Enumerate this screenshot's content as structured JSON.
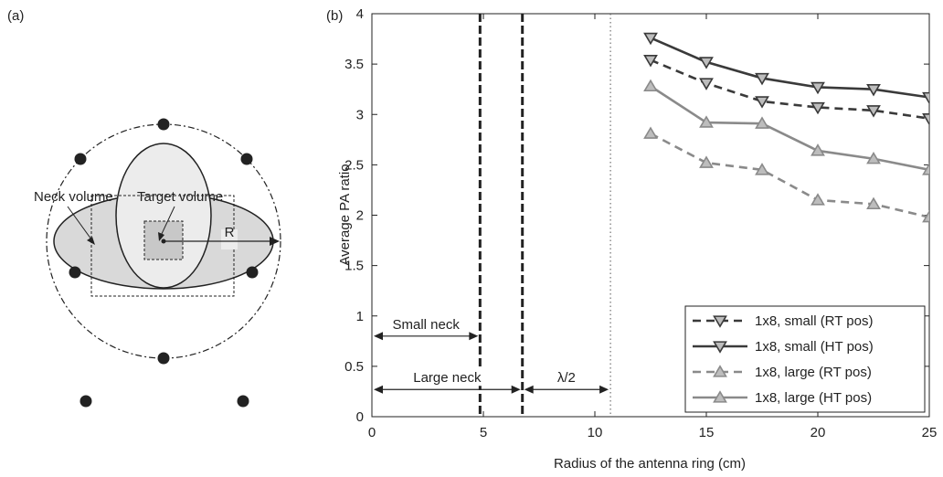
{
  "panel_a": {
    "label": "(a)",
    "neck_label": "Neck volume",
    "target_label": "Target volume",
    "radius_label": "R"
  },
  "chart_data": {
    "type": "line",
    "panel_label": "(b)",
    "title": "",
    "xlabel": "Radius of the antenna ring (cm)",
    "ylabel": "Average PA ratio",
    "xlim": [
      0,
      25
    ],
    "ylim": [
      0,
      4
    ],
    "xticks": [
      0,
      5,
      10,
      15,
      20,
      25
    ],
    "yticks": [
      0,
      0.5,
      1,
      1.5,
      2,
      2.5,
      3,
      3.5,
      4
    ],
    "grid": false,
    "legend_position": "bottom-right",
    "x": [
      12.5,
      15,
      17.5,
      20,
      22.5,
      25
    ],
    "series": [
      {
        "name": "1x8, small (RT pos)",
        "values": [
          3.54,
          3.31,
          3.13,
          3.07,
          3.04,
          2.96
        ],
        "color": "#3a3a3a",
        "dash": "dashed",
        "marker": "triangle-down"
      },
      {
        "name": "1x8, small (HT pos)",
        "values": [
          3.76,
          3.52,
          3.36,
          3.27,
          3.25,
          3.17
        ],
        "color": "#3a3a3a",
        "dash": "solid",
        "marker": "triangle-down"
      },
      {
        "name": "1x8, large (RT pos)",
        "values": [
          2.81,
          2.52,
          2.45,
          2.15,
          2.11,
          1.98
        ],
        "color": "#8a8a8a",
        "dash": "dashed",
        "marker": "triangle-up"
      },
      {
        "name": "1x8, large (HT pos)",
        "values": [
          3.28,
          2.92,
          2.91,
          2.64,
          2.56,
          2.45
        ],
        "color": "#8a8a8a",
        "dash": "solid",
        "marker": "triangle-up"
      }
    ],
    "vertical_lines": [
      {
        "x": 4.85,
        "style": "dashed"
      },
      {
        "x": 6.75,
        "style": "dashed"
      },
      {
        "x": 10.7,
        "style": "dotted"
      }
    ],
    "annotations": [
      {
        "text": "Small neck",
        "x_from": 0,
        "x_to": 4.85,
        "y": 0.8
      },
      {
        "text": "Large neck",
        "x_from": 0,
        "x_to": 6.75,
        "y": 0.27
      },
      {
        "text": "λ/2",
        "x_from": 6.75,
        "x_to": 10.7,
        "y": 0.27
      }
    ]
  }
}
